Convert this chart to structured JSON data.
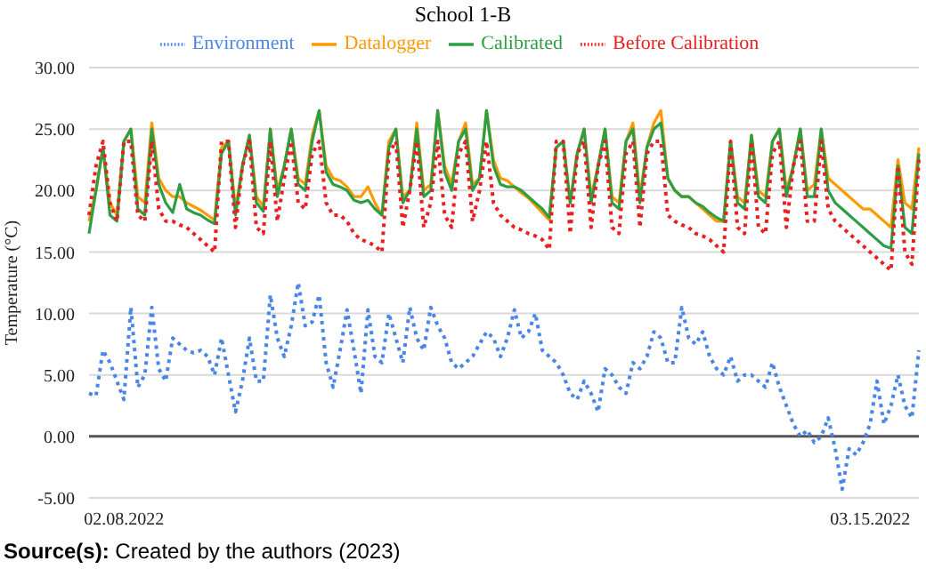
{
  "chart_data": {
    "type": "line",
    "title": "School 1-B",
    "ylabel": "Temperature (°C)",
    "annotations": [
      "Source(s): Created by the authors (2023)"
    ],
    "categories": [
      null,
      null,
      null,
      null,
      null,
      "02.08.2022",
      null,
      null,
      null,
      null,
      null,
      null,
      null,
      null,
      null,
      null,
      null,
      null,
      null,
      null,
      null,
      null,
      null,
      null,
      null,
      null,
      null,
      null,
      null,
      null,
      null,
      null,
      null,
      null,
      null,
      null,
      null,
      null,
      null,
      null,
      null,
      null,
      null,
      null,
      null,
      null,
      null,
      null,
      null,
      null,
      null,
      null,
      null,
      null,
      null,
      null,
      null,
      null,
      null,
      null,
      null,
      null,
      null,
      null,
      null,
      null,
      null,
      null,
      null,
      null,
      null,
      null,
      null,
      null,
      null,
      null,
      null,
      null,
      null,
      null,
      null,
      null,
      null,
      null,
      null,
      null,
      null,
      null,
      null,
      null,
      null,
      null,
      null,
      null,
      null,
      null,
      null,
      null,
      null,
      null,
      null,
      null,
      null,
      null,
      null,
      null,
      null,
      null,
      null,
      null,
      null,
      null,
      "03.15.2022",
      null,
      null,
      null,
      null,
      null,
      null,
      null
    ],
    "series": [
      {
        "name": "Environment",
        "color": "#4a86e8",
        "line_style": "dotted",
        "values": [
          3.5,
          3.3,
          7,
          6,
          4.5,
          3,
          10.5,
          4,
          5,
          10.5,
          5.5,
          4.5,
          8,
          7.5,
          7,
          6.8,
          7,
          6.5,
          5,
          8,
          5,
          2,
          4.5,
          8,
          4.5,
          4.5,
          11.5,
          8,
          6.5,
          9,
          12.5,
          9,
          9.3,
          11.5,
          6,
          4,
          7,
          10.3,
          7,
          3.5,
          10.3,
          6.5,
          6,
          10,
          8,
          6,
          10.5,
          8,
          7,
          10.5,
          9,
          8,
          6,
          5.5,
          6,
          6.5,
          7.5,
          8.5,
          8,
          6.5,
          8,
          10.3,
          8,
          8.5,
          10,
          7,
          6.5,
          6,
          5,
          3.5,
          3,
          4.5,
          3.5,
          2,
          5.5,
          5,
          4,
          3.5,
          6,
          5.5,
          6.5,
          8.5,
          8,
          6,
          6,
          10.5,
          8,
          7.5,
          8.5,
          6.5,
          5.5,
          5,
          6.5,
          4.5,
          5,
          5,
          4.5,
          4,
          6,
          4,
          2.5,
          1,
          0,
          0.5,
          -0.5,
          0,
          1.5,
          -1,
          -4.3,
          -1,
          -1.5,
          -0.5,
          1,
          4.5,
          1,
          2.5,
          5,
          2.5,
          1.5,
          7
        ]
      },
      {
        "name": "Datalogger",
        "color": "#ff9900",
        "line_style": "solid",
        "values": [
          17.5,
          20,
          23.5,
          19,
          18,
          24,
          25,
          19.5,
          19,
          25.5,
          21,
          20,
          19.5,
          19.5,
          19,
          18.7,
          18.4,
          18,
          17.6,
          23.5,
          24,
          18.5,
          22,
          24.5,
          19.5,
          18.7,
          25,
          20,
          22,
          25,
          21,
          20.5,
          24.5,
          26.5,
          22,
          21,
          20.8,
          20.3,
          19.5,
          19.5,
          20.3,
          19,
          18,
          24,
          25,
          19.5,
          20,
          25.5,
          20,
          20.5,
          26.5,
          22,
          20.5,
          24,
          25.5,
          20.5,
          21,
          26.5,
          22.5,
          21,
          20.8,
          20.3,
          19.8,
          19.4,
          18.8,
          18.2,
          17.6,
          23.5,
          24,
          19,
          23,
          25,
          19.5,
          22,
          25,
          19.5,
          19,
          24,
          25.5,
          19.5,
          23.5,
          25.5,
          26.5,
          21,
          20,
          19.5,
          19.5,
          19,
          18.5,
          18,
          17.5,
          17.5,
          24,
          19.5,
          19,
          24.5,
          20,
          19.5,
          24,
          25,
          20,
          22,
          25,
          20,
          20.5,
          25,
          21,
          20.5,
          20,
          19.5,
          19,
          18.5,
          18.5,
          18,
          17.5,
          17,
          22.5,
          19,
          18.5,
          23.5
        ]
      },
      {
        "name": "Calibrated",
        "color": "#2e9e44",
        "line_style": "solid",
        "values": [
          16.5,
          20,
          23.5,
          18,
          17.5,
          24,
          25,
          18.5,
          18,
          25,
          20.5,
          19,
          18.2,
          20.5,
          18.5,
          18.2,
          18,
          17.6,
          17.3,
          23,
          24,
          18,
          22,
          24.5,
          19,
          18.3,
          25,
          19.5,
          22,
          25,
          20.5,
          20,
          24,
          26.5,
          21.5,
          20.5,
          20.3,
          20,
          19.2,
          19,
          19.2,
          18.5,
          18,
          23.5,
          25,
          19,
          20,
          25,
          19.5,
          20,
          26.5,
          21.5,
          20,
          24,
          25,
          20,
          21,
          26.5,
          22,
          20.5,
          20.3,
          20.3,
          20,
          19.5,
          19,
          18.5,
          17.8,
          23.5,
          24,
          19,
          23,
          25,
          19,
          22,
          25,
          19,
          18.5,
          24,
          25,
          19,
          23.5,
          25,
          25.5,
          21,
          20,
          19.5,
          19.5,
          19,
          18.7,
          18.2,
          17.8,
          17.5,
          24,
          19,
          18.5,
          24.5,
          19.5,
          19,
          24,
          25,
          19.5,
          22,
          25,
          19.5,
          19.5,
          25,
          20,
          19,
          18.5,
          18,
          17.5,
          17,
          16.5,
          16,
          15.5,
          15.3,
          22,
          17,
          16.5,
          23
        ]
      },
      {
        "name": "Before Calibration",
        "color": "#e8201f",
        "line_style": "dotted",
        "values": [
          18,
          22,
          24,
          19,
          17.5,
          24,
          24,
          18,
          17.5,
          24,
          18.5,
          17.5,
          17.5,
          17.2,
          17,
          16.5,
          16,
          15.5,
          15,
          24,
          24,
          17,
          22,
          24,
          17,
          16.5,
          24,
          17.5,
          21,
          24,
          19,
          18.5,
          23,
          24,
          19,
          18,
          18,
          17.5,
          16.5,
          16,
          15.8,
          15.5,
          15,
          23,
          24,
          17,
          20,
          24,
          17,
          19,
          24,
          18,
          17,
          23,
          24,
          17.5,
          20,
          24,
          19,
          18,
          17.5,
          17,
          16.8,
          16.5,
          16.3,
          16,
          15.2,
          24,
          24,
          16.5,
          23,
          24,
          17,
          22,
          24,
          17,
          16.5,
          23,
          24,
          17,
          23,
          24,
          24,
          18,
          17.5,
          17.2,
          17,
          16.5,
          16.3,
          16,
          15.5,
          15,
          24,
          17,
          16.5,
          24,
          17,
          16.5,
          23,
          24,
          17,
          22,
          24,
          17.5,
          17.5,
          24,
          18.5,
          17.5,
          17,
          16.5,
          16,
          15.5,
          15,
          14.5,
          14,
          13.5,
          22,
          15,
          14,
          22.5
        ]
      }
    ],
    "ylim": [
      -5,
      30
    ],
    "yticks": [
      {
        "value": -5,
        "label": "-5.00"
      },
      {
        "value": 0,
        "label": "0.00"
      },
      {
        "value": 5,
        "label": "5.00"
      },
      {
        "value": 10,
        "label": "10.00"
      },
      {
        "value": 15,
        "label": "15.00"
      },
      {
        "value": 20,
        "label": "20.00"
      },
      {
        "value": 25,
        "label": "25.00"
      },
      {
        "value": 30,
        "label": "30.00"
      }
    ],
    "ref_lines": [
      {
        "axis": "y",
        "value": 0,
        "color": "#555555"
      }
    ],
    "grid": "y",
    "legend": "top",
    "marker": "none"
  }
}
